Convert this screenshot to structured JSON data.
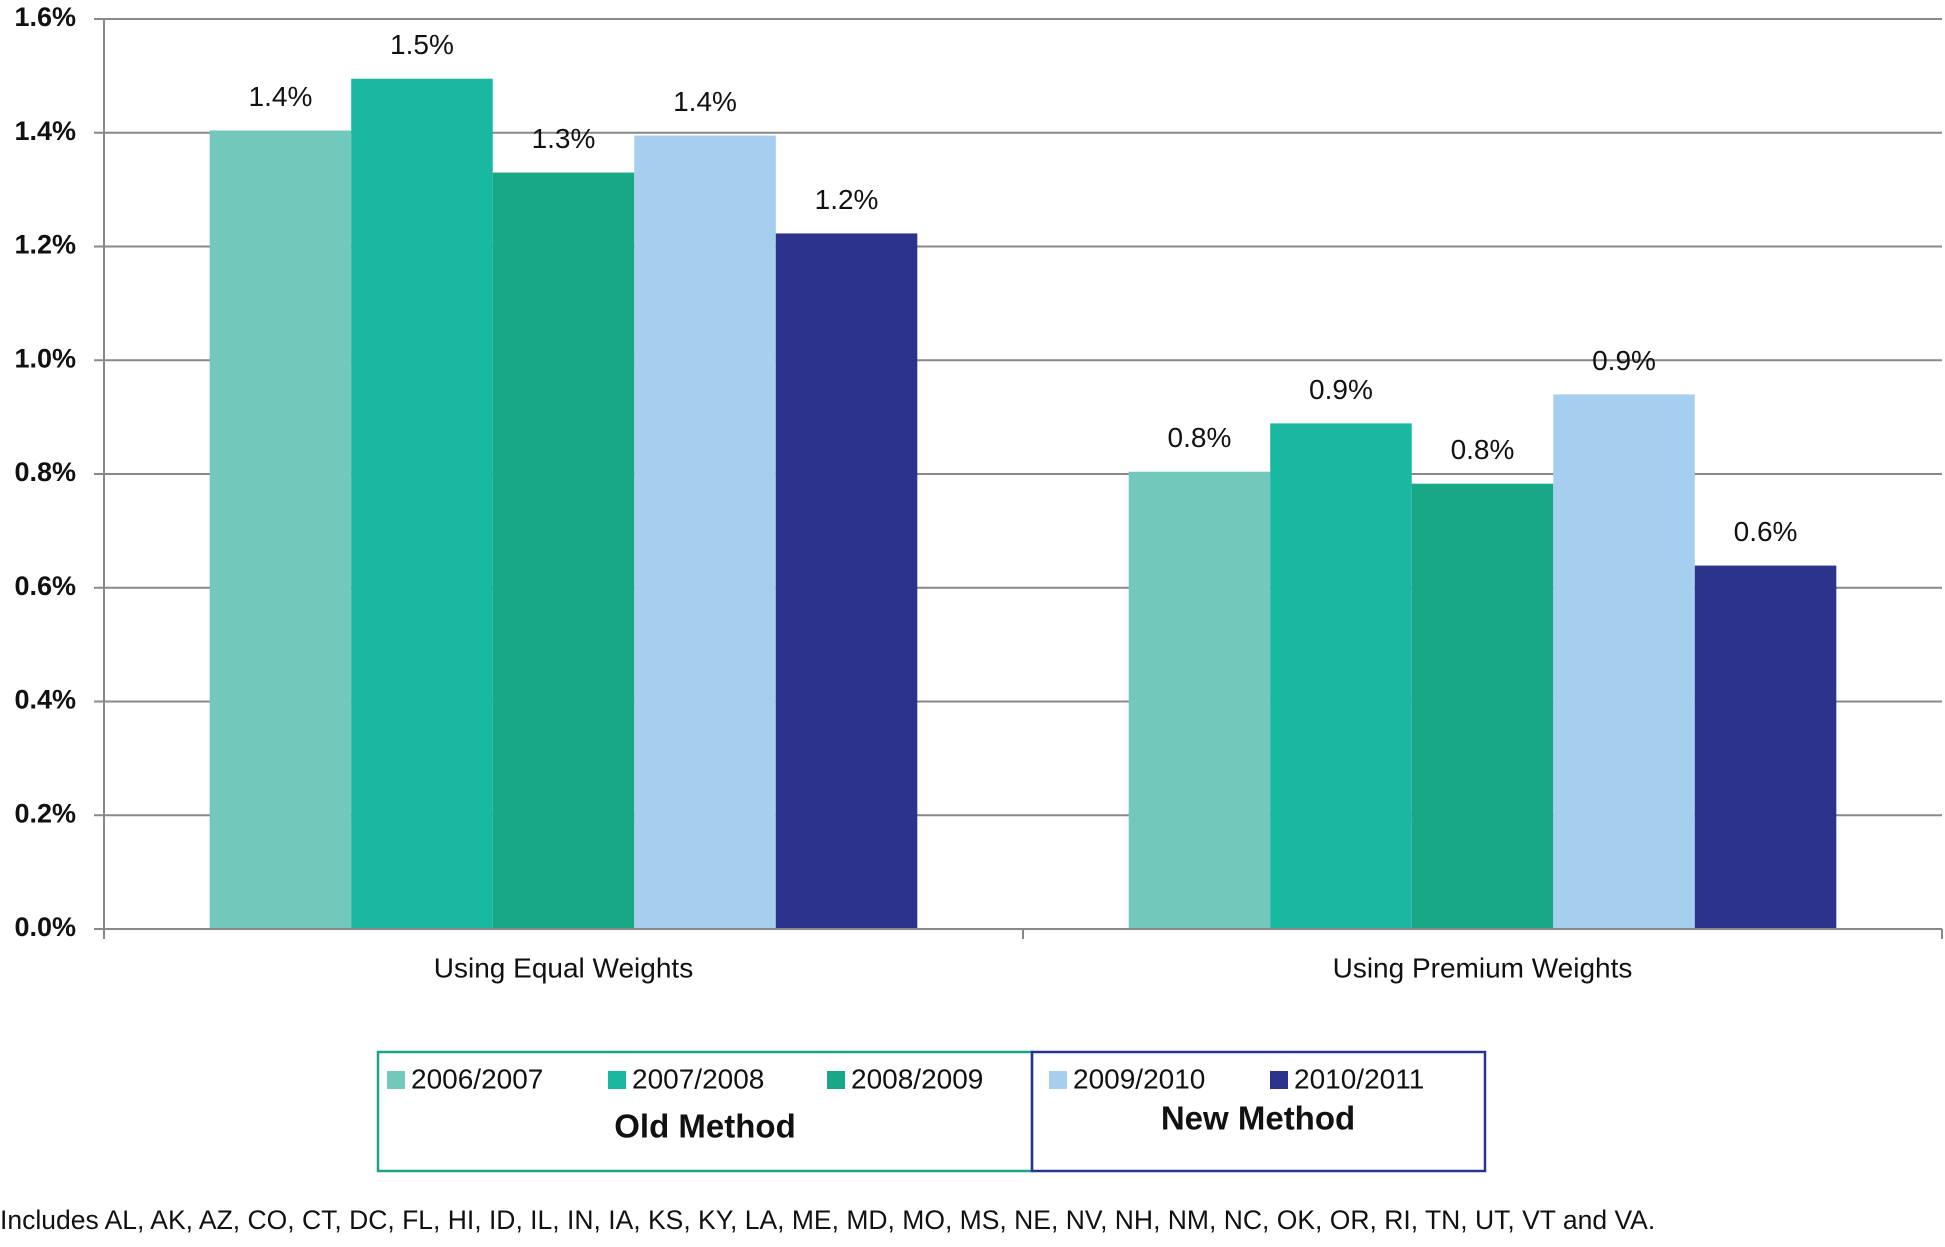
{
  "chart_data": {
    "type": "bar",
    "categories": [
      "Using Equal Weights",
      "Using Premium Weights"
    ],
    "series": [
      {
        "name": "2006/2007",
        "color": "#72c8bb",
        "values": [
          1.404,
          0.804
        ],
        "value_labels": [
          "1.4%",
          "0.8%"
        ]
      },
      {
        "name": "2007/2008",
        "color": "#19b9a1",
        "values": [
          1.495,
          0.889
        ],
        "value_labels": [
          "1.5%",
          "0.9%"
        ]
      },
      {
        "name": "2008/2009",
        "color": "#18a886",
        "values": [
          1.33,
          0.783
        ],
        "value_labels": [
          "1.3%",
          "0.8%"
        ]
      },
      {
        "name": "2009/2010",
        "color": "#a6cfef",
        "values": [
          1.395,
          0.94
        ],
        "value_labels": [
          "1.4%",
          "0.9%"
        ]
      },
      {
        "name": "2010/2011",
        "color": "#2b338d",
        "values": [
          1.223,
          0.639
        ],
        "value_labels": [
          "1.2%",
          "0.6%"
        ]
      }
    ],
    "ylim": [
      0,
      1.6
    ],
    "yticks": [
      {
        "value": 0,
        "label": "0.0%"
      },
      {
        "value": 0.2,
        "label": "0.2%"
      },
      {
        "value": 0.4,
        "label": "0.4%"
      },
      {
        "value": 0.6,
        "label": "0.6%"
      },
      {
        "value": 0.8,
        "label": "0.8%"
      },
      {
        "value": 1.0,
        "label": "1.0%"
      },
      {
        "value": 1.2,
        "label": "1.2%"
      },
      {
        "value": 1.4,
        "label": "1.4%"
      },
      {
        "value": 1.6,
        "label": "1.6%"
      }
    ],
    "grid": true,
    "legend_groups": [
      {
        "title": "Old Method",
        "color": "#1aa386"
      },
      {
        "title": "New Method",
        "color": "#2a348e"
      }
    ],
    "note": "Includes AL, AK, AZ, CO, CT, DC, FL, HI, ID, IL, IN, IA, KS, KY, LA, ME, MD, MO, MS, NE, NV, NH, NM, NC, OK, OR, RI, TN, UT, VT and VA."
  }
}
